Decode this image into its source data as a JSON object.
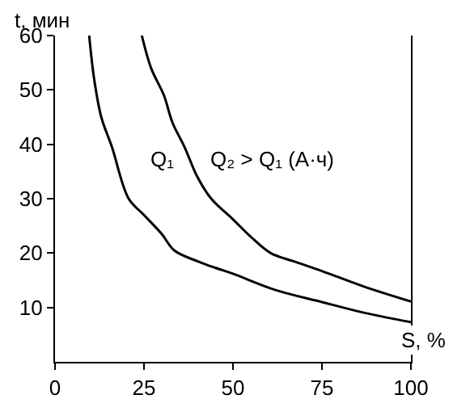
{
  "chart_data": {
    "type": "line",
    "xlabel": "S, %",
    "ylabel": "t, мин",
    "xlim": [
      0,
      100
    ],
    "xticks": [
      0,
      25,
      50,
      75,
      100
    ],
    "ylim": [
      0,
      60
    ],
    "yticks": [
      10,
      20,
      30,
      40,
      50,
      60
    ],
    "marker": "none",
    "line_style": "solid",
    "series": [
      {
        "color": "#000000",
        "x": [
          9.6,
          11,
          13,
          16,
          20.7,
          25,
          30,
          33.5,
          40,
          45,
          50,
          62,
          75,
          87,
          100
        ],
        "values": [
          60,
          52,
          45,
          39.5,
          30,
          27,
          23.5,
          20.5,
          18.5,
          17.3,
          16.2,
          13.2,
          11,
          9,
          7.3
        ]
      },
      {
        "color": "#000000",
        "x": [
          24.4,
          27,
          30.6,
          33,
          36.4,
          40,
          43.9,
          50,
          55,
          60.6,
          67,
          75,
          87,
          100
        ],
        "values": [
          60,
          54,
          49,
          44,
          39.5,
          34,
          30,
          26.2,
          23,
          20,
          18.5,
          16.7,
          13.8,
          11.1
        ]
      }
    ],
    "annotations": [
      "Q₁",
      "Q₂ > Q₁ (А·ч)"
    ]
  }
}
